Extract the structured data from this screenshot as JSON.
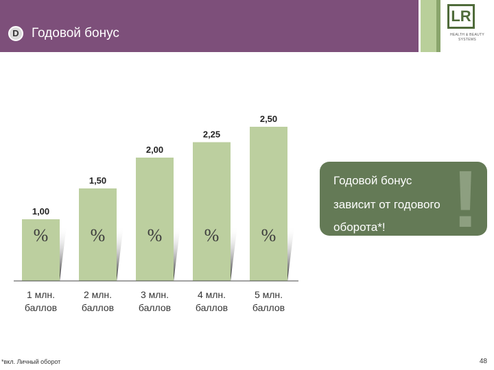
{
  "header": {
    "section_letter": "D",
    "title": "Годовой бонус",
    "logo_letters": "LR",
    "logo_text": "HEALTH & BEAUTY SYSTEMS"
  },
  "chart_data": {
    "type": "bar",
    "categories": [
      "1 млн. баллов",
      "2 млн. баллов",
      "3 млн. баллов",
      "4 млн. баллов",
      "5 млн. баллов"
    ],
    "category_lines": [
      [
        "1 млн.",
        "баллов"
      ],
      [
        "2 млн.",
        "баллов"
      ],
      [
        "3 млн.",
        "баллов"
      ],
      [
        "4 млн.",
        "баллов"
      ],
      [
        "5 млн.",
        "баллов"
      ]
    ],
    "values": [
      1.0,
      1.5,
      2.0,
      2.25,
      2.5
    ],
    "value_labels": [
      "1,00",
      "1,50",
      "2,00",
      "2,25",
      "2,50"
    ],
    "unit_symbol": "%",
    "title": "",
    "xlabel": "",
    "ylabel": "",
    "ylim": [
      0,
      2.5
    ],
    "grid": false,
    "bar_color": "#bccf9f"
  },
  "callout": {
    "lines": [
      "Годовой бонус",
      "зависит от годового",
      "оборота*!"
    ],
    "mark": "!"
  },
  "footnote": "*вкл. Личный оборот",
  "page_number": "48",
  "colors": {
    "header": "#7d4f7a",
    "callout": "#647a56",
    "bars": "#bccf9f"
  }
}
